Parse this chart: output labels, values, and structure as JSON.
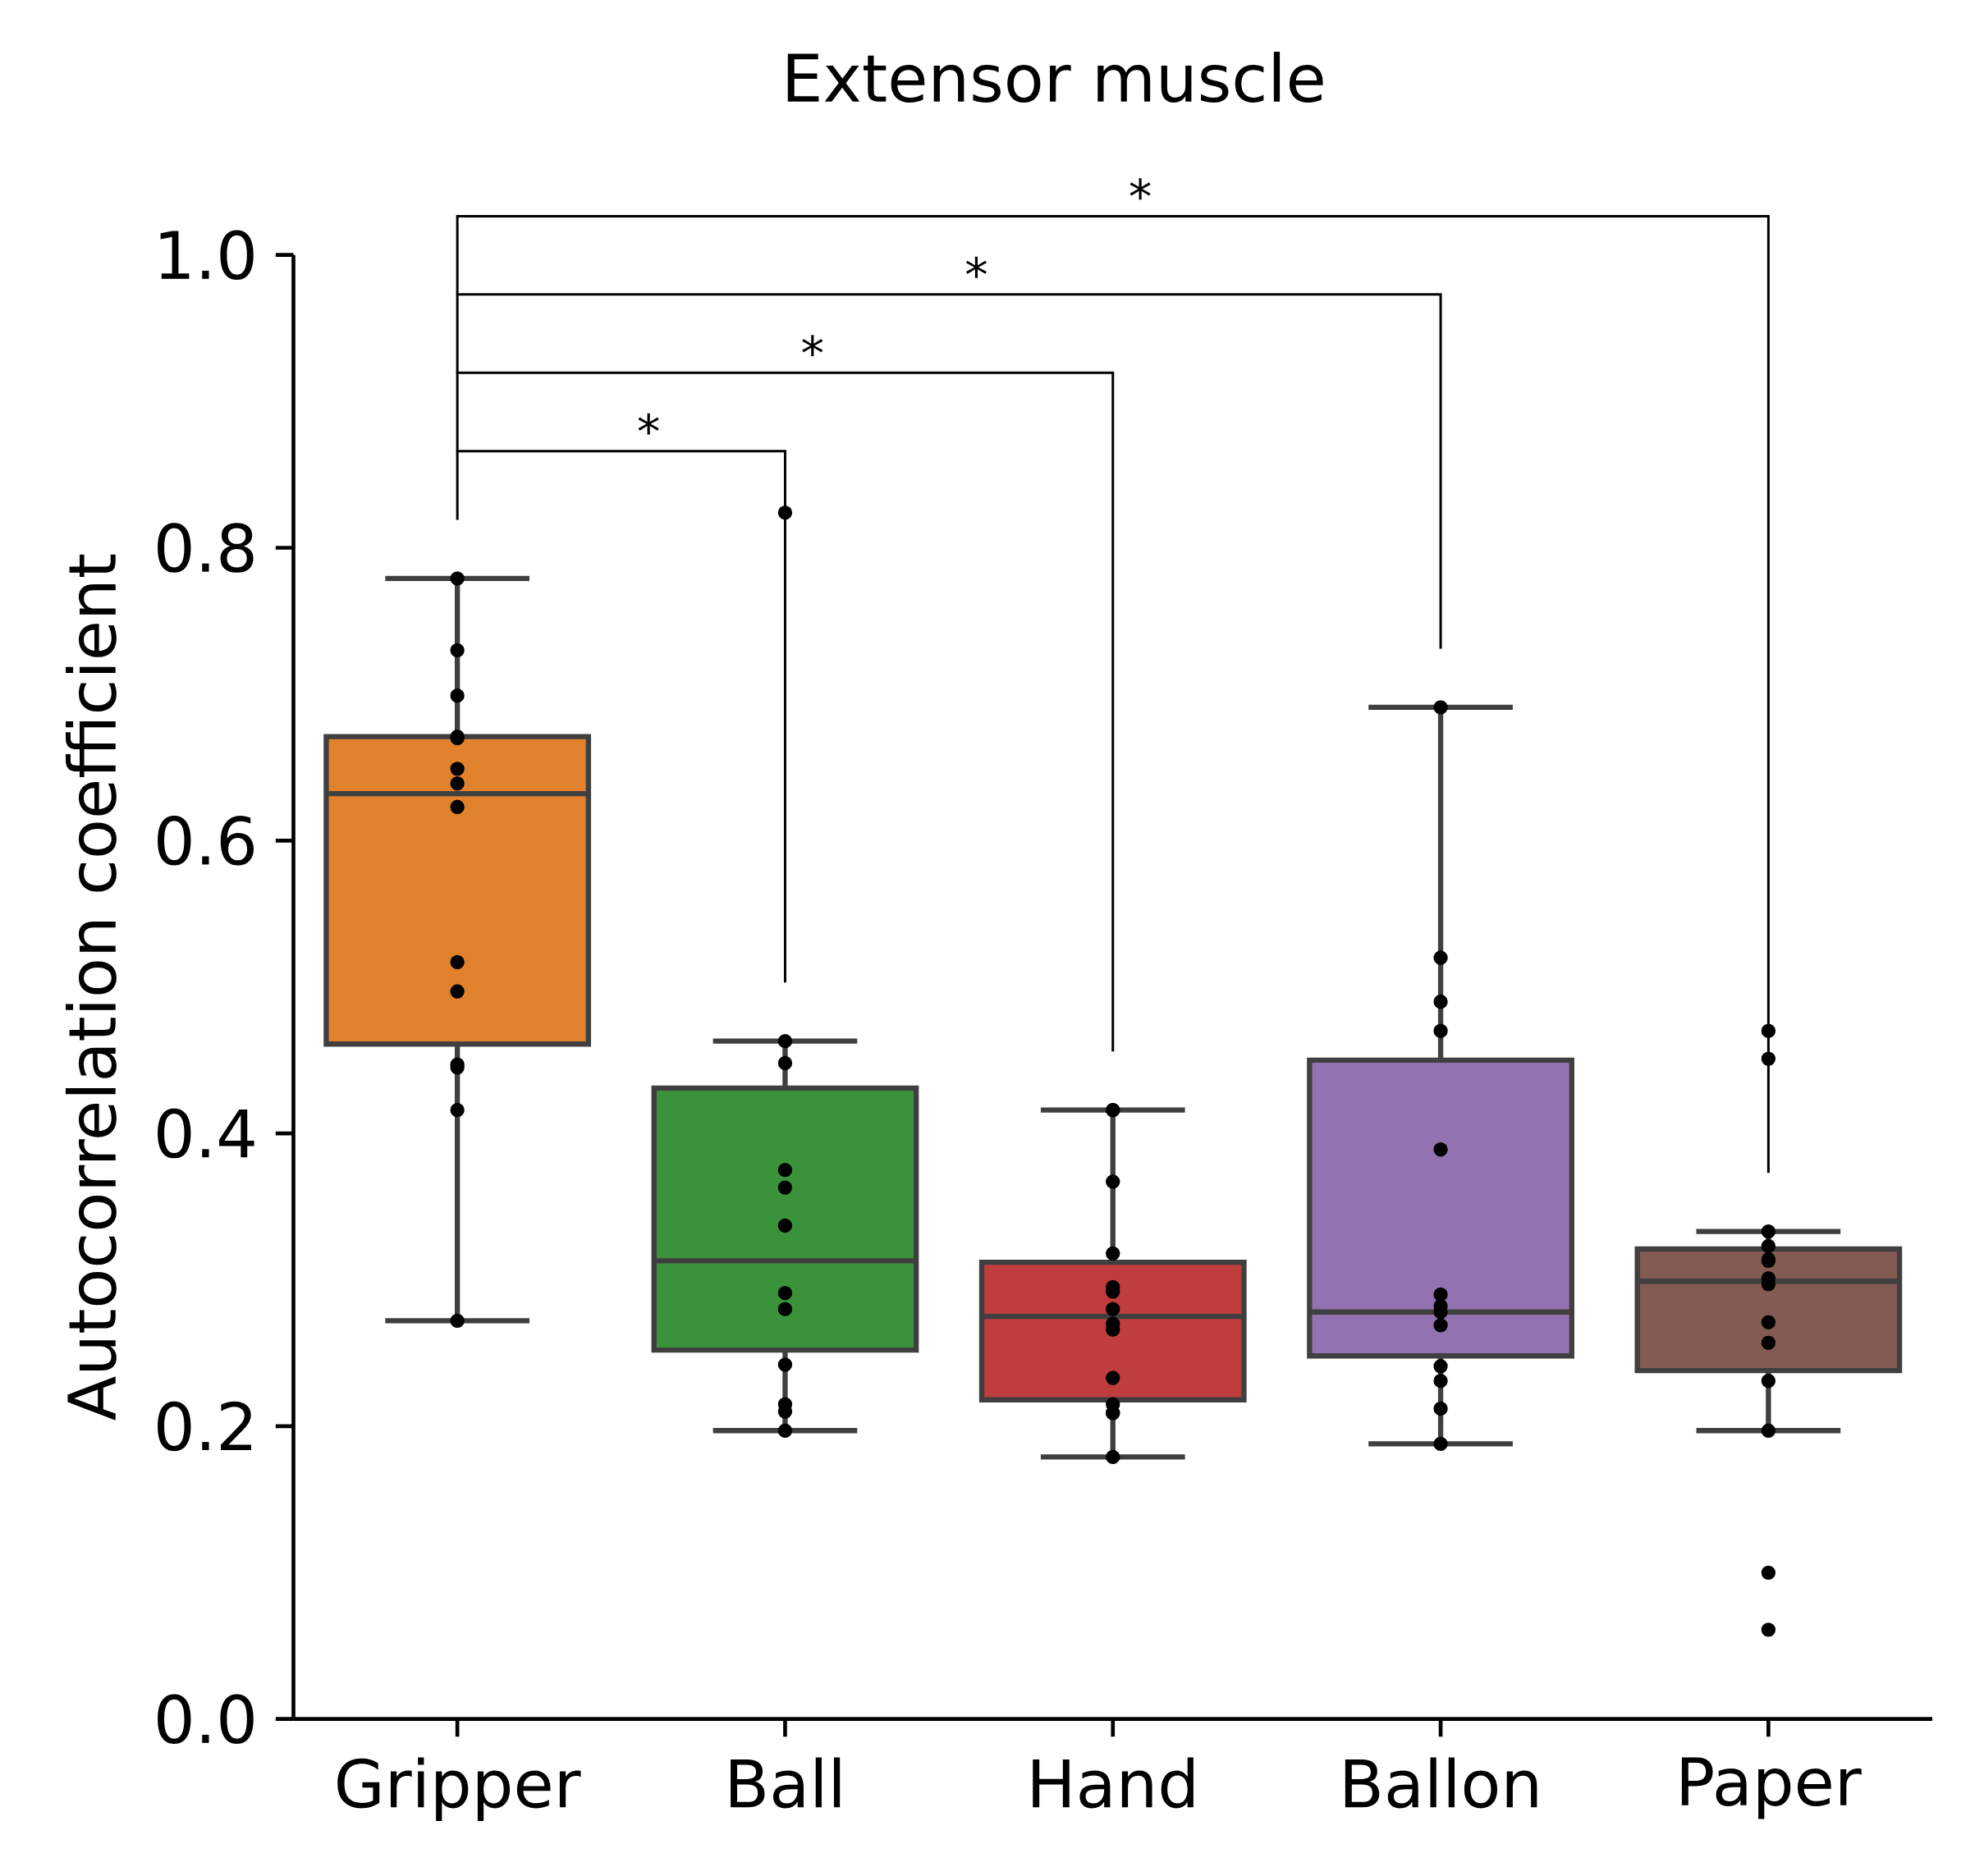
{
  "chart_data": {
    "type": "box",
    "title": "Extensor muscle",
    "ylabel": "Autocorrelation coefficient",
    "categories": [
      "Gripper",
      "Ball",
      "Hand",
      "Ballon",
      "Paper"
    ],
    "colors": [
      "#e1812c",
      "#3a923a",
      "#c03d3e",
      "#9372b2",
      "#845b53"
    ],
    "boxes": [
      {
        "low": 0.272,
        "q1": 0.461,
        "median": 0.632,
        "q3": 0.671,
        "high": 0.779
      },
      {
        "low": 0.197,
        "q1": 0.252,
        "median": 0.313,
        "q3": 0.431,
        "high": 0.463
      },
      {
        "low": 0.179,
        "q1": 0.218,
        "median": 0.275,
        "q3": 0.312,
        "high": 0.416
      },
      {
        "low": 0.188,
        "q1": 0.248,
        "median": 0.278,
        "q3": 0.45,
        "high": 0.691
      },
      {
        "low": 0.197,
        "q1": 0.238,
        "median": 0.299,
        "q3": 0.321,
        "high": 0.333
      }
    ],
    "series": [
      {
        "type": "scatter",
        "color": "#000000",
        "marker": "circle",
        "x": [
          "Gripper",
          "Gripper",
          "Gripper",
          "Gripper",
          "Gripper",
          "Gripper",
          "Gripper",
          "Gripper",
          "Gripper",
          "Gripper",
          "Gripper",
          "Gripper",
          "Gripper",
          "Gripper",
          "Ball",
          "Ball",
          "Ball",
          "Ball",
          "Ball",
          "Ball",
          "Ball",
          "Ball",
          "Ball",
          "Ball",
          "Ball",
          "Ball",
          "Hand",
          "Hand",
          "Hand",
          "Hand",
          "Hand",
          "Hand",
          "Hand",
          "Hand",
          "Hand",
          "Hand",
          "Hand",
          "Hand",
          "Hand",
          "Hand",
          "Ballon",
          "Ballon",
          "Ballon",
          "Ballon",
          "Ballon",
          "Ballon",
          "Ballon",
          "Ballon",
          "Ballon",
          "Ballon",
          "Ballon",
          "Ballon",
          "Ballon",
          "Paper",
          "Paper",
          "Paper",
          "Paper",
          "Paper",
          "Paper",
          "Paper",
          "Paper",
          "Paper",
          "Paper",
          "Paper",
          "Paper",
          "Paper",
          "Paper"
        ],
        "values": [
          0.779,
          0.73,
          0.699,
          0.671,
          0.67,
          0.649,
          0.639,
          0.623,
          0.517,
          0.497,
          0.447,
          0.445,
          0.416,
          0.272,
          0.824,
          0.463,
          0.448,
          0.375,
          0.363,
          0.337,
          0.291,
          0.28,
          0.242,
          0.215,
          0.21,
          0.197,
          0.416,
          0.416,
          0.367,
          0.318,
          0.295,
          0.292,
          0.28,
          0.27,
          0.266,
          0.233,
          0.215,
          0.209,
          0.209,
          0.179,
          0.691,
          0.52,
          0.49,
          0.47,
          0.389,
          0.29,
          0.282,
          0.278,
          0.269,
          0.241,
          0.231,
          0.212,
          0.188,
          0.47,
          0.451,
          0.333,
          0.323,
          0.314,
          0.313,
          0.301,
          0.297,
          0.271,
          0.257,
          0.231,
          0.197,
          0.1,
          0.061
        ]
      }
    ],
    "ylim": [
      0,
      1
    ],
    "yticks": [
      {
        "value": 0,
        "label": "0.0"
      },
      0.2,
      0.4,
      0.6,
      0.8,
      {
        "value": 1,
        "label": "1.0"
      }
    ],
    "annotations": [
      "*",
      "*",
      "*",
      "*"
    ]
  }
}
